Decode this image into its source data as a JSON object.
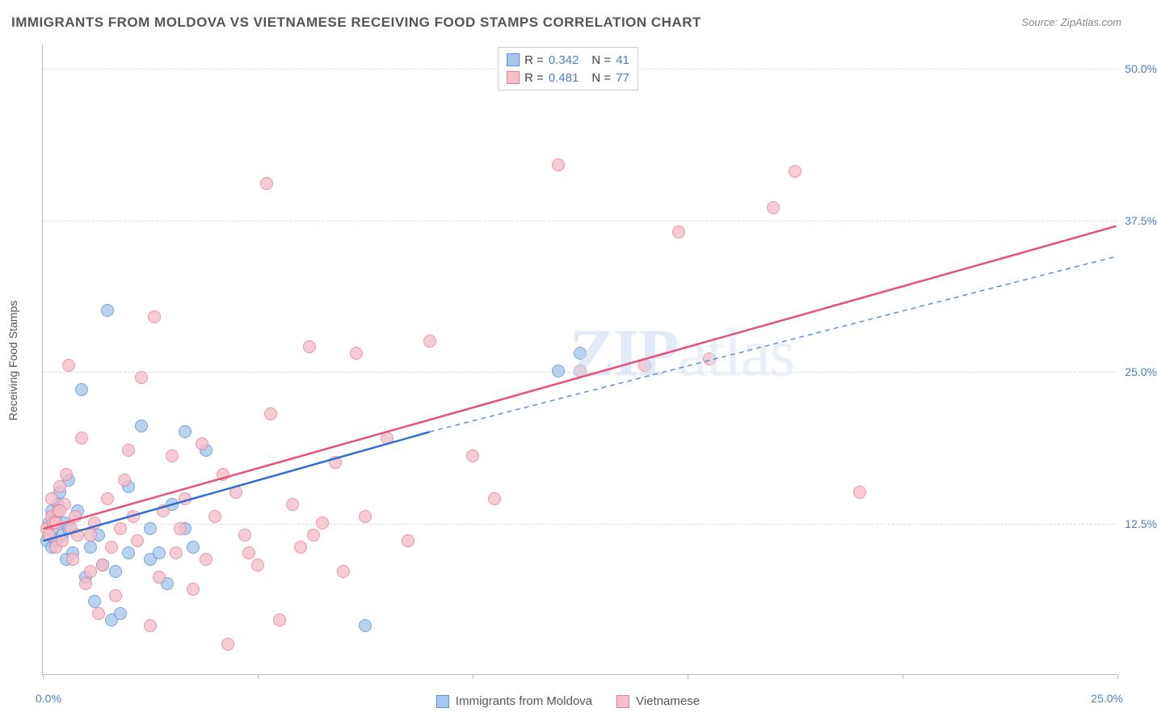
{
  "title": "IMMIGRANTS FROM MOLDOVA VS VIETNAMESE RECEIVING FOOD STAMPS CORRELATION CHART",
  "source_label": "Source: ZipAtlas.com",
  "watermark_main": "ZIP",
  "watermark_sub": "atlas",
  "chart": {
    "type": "scatter",
    "background_color": "#ffffff",
    "grid_color": "#dddddd",
    "axis_color": "#bbbbbb",
    "tick_label_color": "#4a7ec9",
    "ylabel": "Receiving Food Stamps",
    "ylabel_fontsize": 14,
    "xlim": [
      0,
      25
    ],
    "ylim": [
      0,
      52
    ],
    "yticks": [
      12.5,
      25.0,
      37.5,
      50.0
    ],
    "ytick_labels": [
      "12.5%",
      "25.0%",
      "37.5%",
      "50.0%"
    ],
    "xtick_positions": [
      0,
      5,
      10,
      15,
      20,
      25
    ],
    "xaxis_labels": {
      "left": "0.0%",
      "right": "25.0%"
    },
    "marker_radius": 8,
    "marker_fill_opacity": 0.35,
    "marker_stroke_width": 1.5,
    "trend_line_width": 2.5,
    "series": [
      {
        "name": "Immigrants from Moldova",
        "marker_fill": "#a8c7ec",
        "marker_stroke": "#5b8fd6",
        "trend_color": "#2f6fd0",
        "trend_dash_color": "#5b8fd6",
        "r_value": "0.342",
        "n_value": "41",
        "trend": {
          "x1": 0,
          "y1": 11.0,
          "x2": 9.0,
          "y2": 20.0,
          "dash_x2": 25.0,
          "dash_y2": 34.5
        },
        "points": [
          [
            0.1,
            11.0
          ],
          [
            0.15,
            12.5
          ],
          [
            0.2,
            13.5
          ],
          [
            0.2,
            10.5
          ],
          [
            0.25,
            12.0
          ],
          [
            0.3,
            13.0
          ],
          [
            0.35,
            14.0
          ],
          [
            0.4,
            15.0
          ],
          [
            0.45,
            11.5
          ],
          [
            0.5,
            12.5
          ],
          [
            0.55,
            9.5
          ],
          [
            0.6,
            16.0
          ],
          [
            0.6,
            12.0
          ],
          [
            0.7,
            10.0
          ],
          [
            0.8,
            13.5
          ],
          [
            0.9,
            23.5
          ],
          [
            1.0,
            8.0
          ],
          [
            1.1,
            10.5
          ],
          [
            1.2,
            6.0
          ],
          [
            1.3,
            11.5
          ],
          [
            1.4,
            9.0
          ],
          [
            1.5,
            30.0
          ],
          [
            1.6,
            4.5
          ],
          [
            1.7,
            8.5
          ],
          [
            1.8,
            5.0
          ],
          [
            2.0,
            15.5
          ],
          [
            2.0,
            10.0
          ],
          [
            2.3,
            20.5
          ],
          [
            2.5,
            12.0
          ],
          [
            2.5,
            9.5
          ],
          [
            2.7,
            10.0
          ],
          [
            2.9,
            7.5
          ],
          [
            3.0,
            14.0
          ],
          [
            3.3,
            20.0
          ],
          [
            3.3,
            12.0
          ],
          [
            3.5,
            10.5
          ],
          [
            3.8,
            18.5
          ],
          [
            7.5,
            4.0
          ],
          [
            12.0,
            25.0
          ],
          [
            12.5,
            26.5
          ],
          [
            0.3,
            11.0
          ]
        ]
      },
      {
        "name": "Vietnamese",
        "marker_fill": "#f5bfca",
        "marker_stroke": "#e87b94",
        "trend_color": "#e6517a",
        "r_value": "0.481",
        "n_value": "77",
        "trend": {
          "x1": 0,
          "y1": 12.0,
          "x2": 25.0,
          "y2": 37.0
        },
        "points": [
          [
            0.1,
            12.0
          ],
          [
            0.15,
            11.5
          ],
          [
            0.2,
            13.0
          ],
          [
            0.2,
            14.5
          ],
          [
            0.25,
            12.5
          ],
          [
            0.3,
            10.5
          ],
          [
            0.35,
            13.5
          ],
          [
            0.4,
            15.5
          ],
          [
            0.45,
            11.0
          ],
          [
            0.5,
            14.0
          ],
          [
            0.55,
            16.5
          ],
          [
            0.6,
            25.5
          ],
          [
            0.65,
            12.0
          ],
          [
            0.7,
            9.5
          ],
          [
            0.75,
            13.0
          ],
          [
            0.8,
            11.5
          ],
          [
            0.9,
            19.5
          ],
          [
            1.0,
            7.5
          ],
          [
            1.1,
            8.5
          ],
          [
            1.2,
            12.5
          ],
          [
            1.3,
            5.0
          ],
          [
            1.4,
            9.0
          ],
          [
            1.5,
            14.5
          ],
          [
            1.6,
            10.5
          ],
          [
            1.7,
            6.5
          ],
          [
            1.8,
            12.0
          ],
          [
            1.9,
            16.0
          ],
          [
            2.0,
            18.5
          ],
          [
            2.2,
            11.0
          ],
          [
            2.3,
            24.5
          ],
          [
            2.5,
            4.0
          ],
          [
            2.6,
            29.5
          ],
          [
            2.7,
            8.0
          ],
          [
            2.8,
            13.5
          ],
          [
            3.0,
            18.0
          ],
          [
            3.1,
            10.0
          ],
          [
            3.3,
            14.5
          ],
          [
            3.5,
            7.0
          ],
          [
            3.7,
            19.0
          ],
          [
            3.8,
            9.5
          ],
          [
            4.0,
            13.0
          ],
          [
            4.2,
            16.5
          ],
          [
            4.3,
            2.5
          ],
          [
            4.5,
            15.0
          ],
          [
            4.7,
            11.5
          ],
          [
            5.0,
            9.0
          ],
          [
            5.2,
            40.5
          ],
          [
            5.3,
            21.5
          ],
          [
            5.5,
            4.5
          ],
          [
            5.8,
            14.0
          ],
          [
            6.0,
            10.5
          ],
          [
            6.2,
            27.0
          ],
          [
            6.5,
            12.5
          ],
          [
            6.8,
            17.5
          ],
          [
            7.0,
            8.5
          ],
          [
            7.3,
            26.5
          ],
          [
            7.5,
            13.0
          ],
          [
            8.0,
            19.5
          ],
          [
            8.5,
            11.0
          ],
          [
            9.0,
            27.5
          ],
          [
            10.0,
            18.0
          ],
          [
            10.5,
            14.5
          ],
          [
            12.0,
            42.0
          ],
          [
            12.5,
            25.0
          ],
          [
            14.0,
            25.5
          ],
          [
            14.8,
            36.5
          ],
          [
            15.5,
            26.0
          ],
          [
            17.0,
            38.5
          ],
          [
            17.5,
            41.5
          ],
          [
            19.0,
            15.0
          ],
          [
            0.3,
            12.5
          ],
          [
            0.4,
            13.5
          ],
          [
            1.1,
            11.5
          ],
          [
            2.1,
            13.0
          ],
          [
            3.2,
            12.0
          ],
          [
            4.8,
            10.0
          ],
          [
            6.3,
            11.5
          ]
        ]
      }
    ],
    "legend_top": {
      "r_label": "R =",
      "n_label": "N ="
    },
    "legend_bottom": {
      "items": [
        "Immigrants from Moldova",
        "Vietnamese"
      ]
    }
  }
}
